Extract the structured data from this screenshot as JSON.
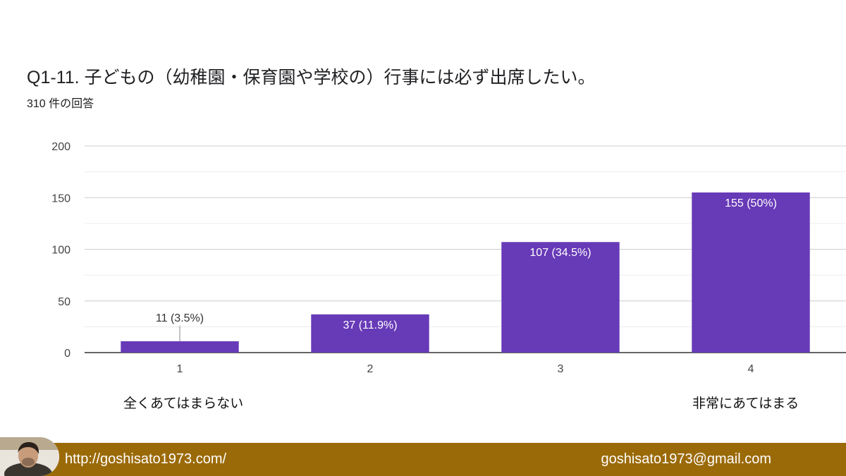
{
  "header": {
    "title": "Q1-11.  子どもの（幼稚園・保育園や学校の）行事には必ず出席したい。",
    "subtitle": "310 件の回答"
  },
  "scale_labels": {
    "low": "全くあてはまらない",
    "high": "非常にあてはまる"
  },
  "footer": {
    "url": "http://goshisato1973.com/",
    "email": "goshisato1973@gmail.com"
  },
  "colors": {
    "bar": "#673ab7",
    "footer": "#9b6a08"
  },
  "chart_data": {
    "type": "bar",
    "categories": [
      "1",
      "2",
      "3",
      "4"
    ],
    "values": [
      11,
      37,
      107,
      155
    ],
    "data_labels": [
      "11 (3.5%)",
      "37 (11.9%)",
      "107 (34.5%)",
      "155 (50%)"
    ],
    "ylim": [
      0,
      200
    ],
    "yticks": [
      0,
      50,
      100,
      150,
      200
    ],
    "grid": true
  }
}
